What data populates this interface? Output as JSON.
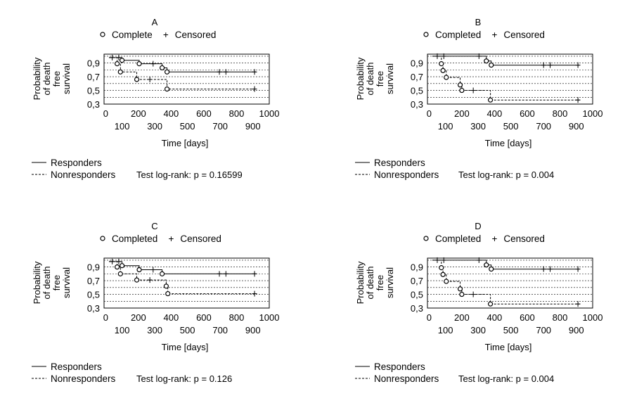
{
  "chart_data": [
    {
      "type": "line",
      "panel_label": "A",
      "legend": {
        "event_label": "Complete",
        "censor_label": "Censored"
      },
      "ylabel_lines": [
        "Probability",
        "of death",
        "free",
        "survival"
      ],
      "xlabel": "Time [days]",
      "y_ticks": [
        0.3,
        0.5,
        0.7,
        0.9
      ],
      "y_tick_labels": [
        "0,3",
        "0,5",
        "0,7",
        "0,9"
      ],
      "x_ticks_upper": [
        0,
        200,
        400,
        600,
        800,
        1000
      ],
      "x_ticks_lower": [
        100,
        300,
        500,
        700,
        900
      ],
      "x_tick_labels_upper": [
        "0",
        "200",
        "400",
        "600",
        "800",
        "1000"
      ],
      "x_tick_labels_lower": [
        "100",
        "300",
        "500",
        "700",
        "900"
      ],
      "xlim": [
        -10,
        1000
      ],
      "ylim": [
        0.3,
        1.03
      ],
      "series": [
        {
          "name": "Responders",
          "style": "solid",
          "steps": [
            [
              20,
              0.98
            ],
            [
              100,
              0.98
            ],
            [
              100,
              0.94
            ],
            [
              205,
              0.94
            ],
            [
              205,
              0.89
            ],
            [
              345,
              0.89
            ],
            [
              345,
              0.83
            ],
            [
              375,
              0.83
            ],
            [
              375,
              0.77
            ],
            [
              920,
              0.77
            ]
          ],
          "events": [
            [
              100,
              0.94
            ],
            [
              205,
              0.89
            ],
            [
              345,
              0.83
            ],
            [
              375,
              0.77
            ]
          ],
          "censored": [
            [
              40,
              0.98
            ],
            [
              80,
              0.98
            ],
            [
              290,
              0.89
            ],
            [
              695,
              0.77
            ],
            [
              735,
              0.77
            ],
            [
              910,
              0.77
            ]
          ]
        },
        {
          "name": "Nonresponders",
          "style": "dashed",
          "steps": [
            [
              20,
              0.98
            ],
            [
              70,
              0.98
            ],
            [
              70,
              0.89
            ],
            [
              90,
              0.89
            ],
            [
              90,
              0.77
            ],
            [
              190,
              0.77
            ],
            [
              190,
              0.66
            ],
            [
              375,
              0.66
            ],
            [
              375,
              0.52
            ],
            [
              920,
              0.52
            ]
          ],
          "events": [
            [
              70,
              0.89
            ],
            [
              90,
              0.77
            ],
            [
              190,
              0.66
            ],
            [
              375,
              0.52
            ]
          ],
          "censored": [
            [
              270,
              0.66
            ],
            [
              910,
              0.52
            ]
          ]
        }
      ],
      "bottom_legend": {
        "solid_label": "Responders",
        "dashed_label": "Nonresponders"
      },
      "test_text": "Test log-rank: p = 0.16599"
    },
    {
      "type": "line",
      "panel_label": "B",
      "legend": {
        "event_label": "Completed",
        "censor_label": "Censored"
      },
      "ylabel_lines": [
        "Probability",
        "of death",
        "free",
        "survival"
      ],
      "xlabel": "Time [days]",
      "y_ticks": [
        0.3,
        0.5,
        0.7,
        0.9
      ],
      "y_tick_labels": [
        "0,3",
        "0,5",
        "0,7",
        "0,9"
      ],
      "x_ticks_upper": [
        0,
        200,
        400,
        600,
        800,
        1000
      ],
      "x_ticks_lower": [
        100,
        300,
        500,
        700,
        900
      ],
      "x_tick_labels_upper": [
        "0",
        "200",
        "400",
        "600",
        "800",
        "1000"
      ],
      "x_tick_labels_lower": [
        "100",
        "300",
        "500",
        "700",
        "900"
      ],
      "xlim": [
        -10,
        1000
      ],
      "ylim": [
        0.3,
        1.03
      ],
      "series": [
        {
          "name": "Responders",
          "style": "solid",
          "steps": [
            [
              20,
              1.0
            ],
            [
              350,
              1.0
            ],
            [
              350,
              0.93
            ],
            [
              380,
              0.93
            ],
            [
              380,
              0.87
            ],
            [
              920,
              0.87
            ]
          ],
          "events": [
            [
              350,
              0.93
            ],
            [
              380,
              0.87
            ]
          ],
          "censored": [
            [
              50,
              1.0
            ],
            [
              90,
              1.0
            ],
            [
              305,
              1.0
            ],
            [
              700,
              0.87
            ],
            [
              740,
              0.87
            ],
            [
              910,
              0.87
            ]
          ]
        },
        {
          "name": "Nonresponders",
          "style": "dashed",
          "steps": [
            [
              20,
              1.0
            ],
            [
              75,
              1.0
            ],
            [
              75,
              0.89
            ],
            [
              85,
              0.89
            ],
            [
              85,
              0.79
            ],
            [
              105,
              0.79
            ],
            [
              105,
              0.69
            ],
            [
              190,
              0.69
            ],
            [
              190,
              0.58
            ],
            [
              200,
              0.58
            ],
            [
              200,
              0.5
            ],
            [
              375,
              0.5
            ],
            [
              375,
              0.36
            ],
            [
              920,
              0.36
            ]
          ],
          "events": [
            [
              75,
              0.89
            ],
            [
              85,
              0.79
            ],
            [
              105,
              0.69
            ],
            [
              190,
              0.58
            ],
            [
              200,
              0.5
            ],
            [
              375,
              0.36
            ]
          ],
          "censored": [
            [
              270,
              0.5
            ],
            [
              910,
              0.36
            ]
          ]
        }
      ],
      "bottom_legend": {
        "solid_label": "Responders",
        "dashed_label": "Nonresponders"
      },
      "test_text": "Test log-rank: p = 0.004"
    },
    {
      "type": "line",
      "panel_label": "C",
      "legend": {
        "event_label": "Completed",
        "censor_label": "Censored"
      },
      "ylabel_lines": [
        "Probability",
        "of death",
        "free",
        "survival"
      ],
      "xlabel": "Time [days]",
      "y_ticks": [
        0.3,
        0.5,
        0.7,
        0.9
      ],
      "y_tick_labels": [
        "0,3",
        "0,5",
        "0,7",
        "0,9"
      ],
      "x_ticks_upper": [
        0,
        200,
        400,
        600,
        800,
        1000
      ],
      "x_ticks_lower": [
        100,
        300,
        500,
        700,
        900
      ],
      "x_tick_labels_upper": [
        "0",
        "200",
        "400",
        "600",
        "800",
        "1000"
      ],
      "x_tick_labels_lower": [
        "100",
        "300",
        "500",
        "700",
        "900"
      ],
      "xlim": [
        -10,
        1000
      ],
      "ylim": [
        0.3,
        1.03
      ],
      "series": [
        {
          "name": "Responders",
          "style": "solid",
          "steps": [
            [
              20,
              0.98
            ],
            [
              100,
              0.98
            ],
            [
              100,
              0.92
            ],
            [
              205,
              0.92
            ],
            [
              205,
              0.86
            ],
            [
              345,
              0.86
            ],
            [
              345,
              0.8
            ],
            [
              920,
              0.8
            ]
          ],
          "events": [
            [
              100,
              0.92
            ],
            [
              205,
              0.86
            ],
            [
              345,
              0.8
            ]
          ],
          "censored": [
            [
              40,
              0.98
            ],
            [
              80,
              0.98
            ],
            [
              290,
              0.86
            ],
            [
              695,
              0.8
            ],
            [
              735,
              0.8
            ],
            [
              910,
              0.8
            ]
          ]
        },
        {
          "name": "Nonresponders",
          "style": "dashed",
          "steps": [
            [
              20,
              0.98
            ],
            [
              70,
              0.98
            ],
            [
              70,
              0.9
            ],
            [
              90,
              0.9
            ],
            [
              90,
              0.8
            ],
            [
              190,
              0.8
            ],
            [
              190,
              0.71
            ],
            [
              370,
              0.71
            ],
            [
              370,
              0.62
            ],
            [
              380,
              0.62
            ],
            [
              380,
              0.51
            ],
            [
              920,
              0.51
            ]
          ],
          "events": [
            [
              70,
              0.9
            ],
            [
              90,
              0.8
            ],
            [
              190,
              0.71
            ],
            [
              370,
              0.62
            ],
            [
              380,
              0.51
            ]
          ],
          "censored": [
            [
              270,
              0.71
            ],
            [
              910,
              0.51
            ]
          ]
        }
      ],
      "bottom_legend": {
        "solid_label": "Responders",
        "dashed_label": "Nonresponders"
      },
      "test_text": "Test log-rank: p = 0.126"
    },
    {
      "type": "line",
      "panel_label": "D",
      "legend": {
        "event_label": "Completed",
        "censor_label": "Censored"
      },
      "ylabel_lines": [
        "Probability",
        "of death",
        "free",
        "survival"
      ],
      "xlabel": "Time [days]",
      "y_ticks": [
        0.3,
        0.5,
        0.7,
        0.9
      ],
      "y_tick_labels": [
        "0,3",
        "0,5",
        "0,7",
        "0,9"
      ],
      "x_ticks_upper": [
        0,
        200,
        400,
        600,
        800,
        1000
      ],
      "x_ticks_lower": [
        100,
        300,
        500,
        700,
        900
      ],
      "x_tick_labels_upper": [
        "0",
        "200",
        "400",
        "600",
        "800",
        "1000"
      ],
      "x_tick_labels_lower": [
        "100",
        "300",
        "500",
        "700",
        "900"
      ],
      "xlim": [
        -10,
        1000
      ],
      "ylim": [
        0.3,
        1.03
      ],
      "series": [
        {
          "name": "Responders",
          "style": "solid",
          "steps": [
            [
              20,
              1.0
            ],
            [
              350,
              1.0
            ],
            [
              350,
              0.93
            ],
            [
              380,
              0.93
            ],
            [
              380,
              0.87
            ],
            [
              920,
              0.87
            ]
          ],
          "events": [
            [
              350,
              0.93
            ],
            [
              380,
              0.87
            ]
          ],
          "censored": [
            [
              50,
              1.0
            ],
            [
              90,
              1.0
            ],
            [
              305,
              1.0
            ],
            [
              700,
              0.87
            ],
            [
              740,
              0.87
            ],
            [
              910,
              0.87
            ]
          ]
        },
        {
          "name": "Nonresponders",
          "style": "dashed",
          "steps": [
            [
              20,
              1.0
            ],
            [
              75,
              1.0
            ],
            [
              75,
              0.89
            ],
            [
              85,
              0.89
            ],
            [
              85,
              0.79
            ],
            [
              105,
              0.79
            ],
            [
              105,
              0.69
            ],
            [
              190,
              0.69
            ],
            [
              190,
              0.58
            ],
            [
              200,
              0.58
            ],
            [
              200,
              0.5
            ],
            [
              375,
              0.5
            ],
            [
              375,
              0.36
            ],
            [
              920,
              0.36
            ]
          ],
          "events": [
            [
              75,
              0.89
            ],
            [
              85,
              0.79
            ],
            [
              105,
              0.69
            ],
            [
              190,
              0.58
            ],
            [
              200,
              0.5
            ],
            [
              375,
              0.36
            ]
          ],
          "censored": [
            [
              270,
              0.5
            ],
            [
              910,
              0.36
            ]
          ]
        }
      ],
      "bottom_legend": {
        "solid_label": "Responders",
        "dashed_label": "Nonresponders"
      },
      "test_text": "Test log-rank: p = 0.004"
    }
  ]
}
